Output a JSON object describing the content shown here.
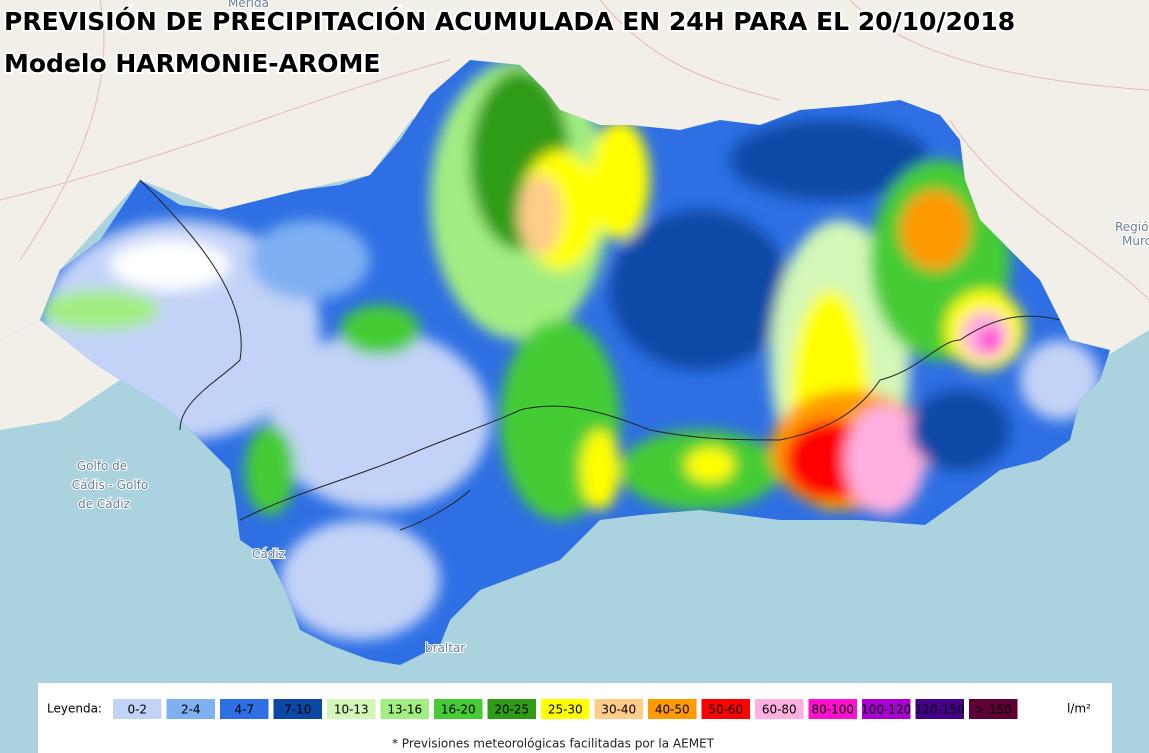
{
  "header": {
    "title": "PREVISIÓN DE PRECIPITACIÓN ACUMULADA EN 24H PARA EL 20/10/2018",
    "subtitle": "Modelo HARMONIE-AROME"
  },
  "map_labels": [
    {
      "text": "Mérida"
    },
    {
      "text": "Golfo de"
    },
    {
      "text": "Cádis - Golfo"
    },
    {
      "text": "de Cádiz"
    },
    {
      "text": "Cádiz"
    },
    {
      "text": "braltar"
    },
    {
      "text": "Región"
    },
    {
      "text": "Murci"
    }
  ],
  "legend": {
    "label": "Leyenda:",
    "items": [
      {
        "label": "0-2",
        "color": "#c3d3f7"
      },
      {
        "label": "2-4",
        "color": "#7eb0f2"
      },
      {
        "label": "4-7",
        "color": "#2e6fe3"
      },
      {
        "label": "7-10",
        "color": "#0b48a6"
      },
      {
        "label": "10-13",
        "color": "#d2f7b8"
      },
      {
        "label": "13-16",
        "color": "#a3ee82"
      },
      {
        "label": "16-20",
        "color": "#45cc35"
      },
      {
        "label": "20-25",
        "color": "#2f9c18"
      },
      {
        "label": "25-30",
        "color": "#ffff00"
      },
      {
        "label": "30-40",
        "color": "#ffcc8a"
      },
      {
        "label": "40-50",
        "color": "#ff9a00"
      },
      {
        "label": "50-60",
        "color": "#ff0000"
      },
      {
        "label": "60-80",
        "color": "#ffb0e0"
      },
      {
        "label": "80-100",
        "color": "#ff10d0"
      },
      {
        "label": "100-120",
        "color": "#a800d0"
      },
      {
        "label": "120-150",
        "color": "#45008a"
      },
      {
        "label": "> 150",
        "color": "#5e0033"
      }
    ],
    "unit": "l/m²"
  },
  "footnote": "* Previsiones meteorológicas facilitadas por la AEMET"
}
